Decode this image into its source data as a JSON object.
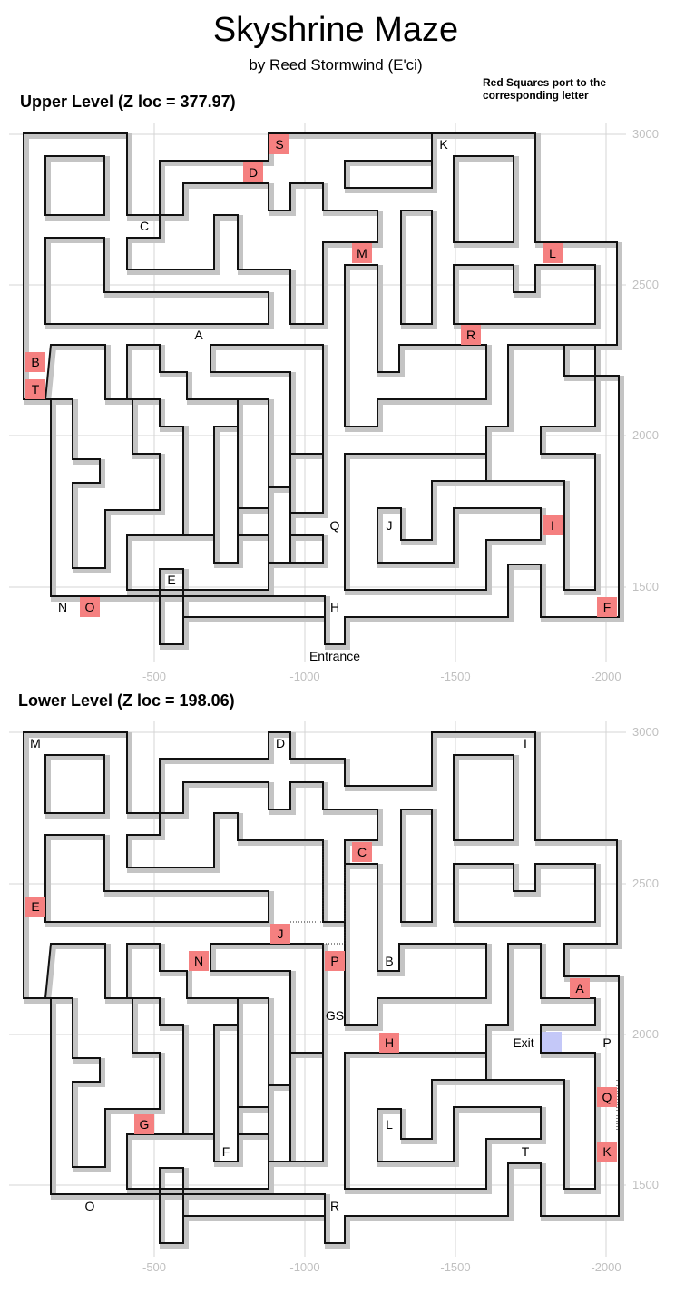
{
  "title": "Skyshrine Maze",
  "byline": "by Reed Stormwind (E'ci)",
  "note": "Red Squares port to the corresponding letter",
  "upper": {
    "title": "Upper Level (Z loc = 377.97)",
    "y_ticks": [
      "3000",
      "2500",
      "2000",
      "1500"
    ],
    "x_ticks": [
      "-500",
      "-1000",
      "-1500",
      "-2000"
    ],
    "portals": [
      "S",
      "D",
      "M",
      "L",
      "R",
      "B",
      "T",
      "I",
      "O",
      "F"
    ],
    "labels": [
      "K",
      "C",
      "A",
      "Q",
      "J",
      "E",
      "N",
      "H",
      "Entrance"
    ]
  },
  "lower": {
    "title": "Lower Level (Z loc = 198.06)",
    "y_ticks": [
      "3000",
      "2500",
      "2000",
      "1500"
    ],
    "x_ticks": [
      "-500",
      "-1000",
      "-1500",
      "-2000"
    ],
    "portals": [
      "C",
      "E",
      "J",
      "N",
      "P",
      "A",
      "H",
      "Q",
      "G",
      "K"
    ],
    "labels": [
      "M",
      "D",
      "I",
      "B",
      "GS",
      "Exit",
      "P",
      "L",
      "F",
      "T",
      "O",
      "R"
    ]
  },
  "colors": {
    "portal": "#f58080",
    "exit": "#c4c8f8",
    "wall": "#111111",
    "wall_halo": "#c4c4c4",
    "grid": "#d4d4d4",
    "tick": "#c0c0c0"
  }
}
